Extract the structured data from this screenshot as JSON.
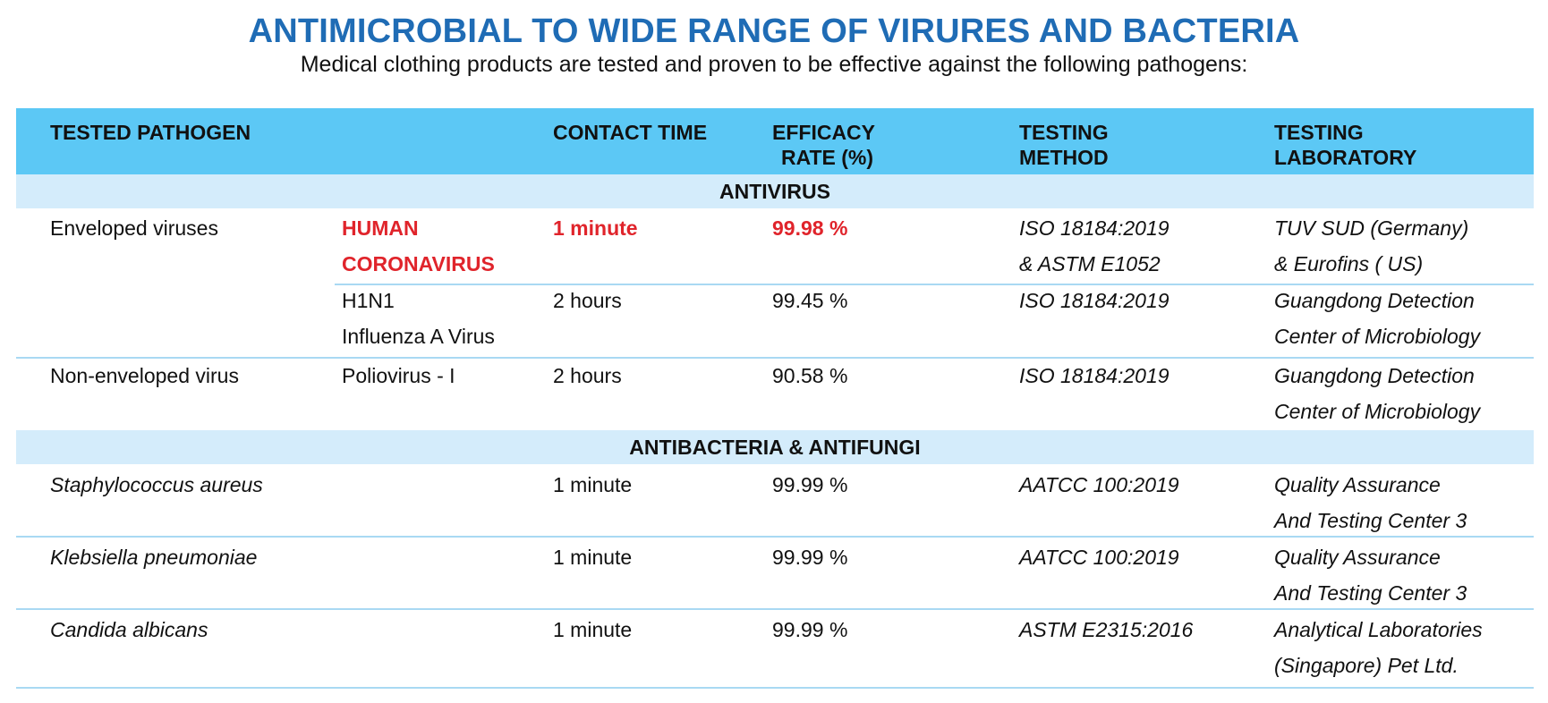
{
  "title": "ANTIMICROBIAL TO WIDE RANGE OF VIRURES AND BACTERIA",
  "subtitle": "Medical clothing products are tested and proven to be effective against the following pathogens:",
  "colors": {
    "title": "#1f6cb5",
    "header_bg": "#5cc8f5",
    "section_bg": "#d4ecfb",
    "highlight": "#e0242b",
    "rule": "#a9d9f3"
  },
  "header": {
    "pathogen": "TESTED PATHOGEN",
    "contact_time": "CONTACT TIME",
    "efficacy_line1": "EFFICACY",
    "efficacy_line2": "RATE (%)",
    "method_line1": "TESTING",
    "method_line2": "METHOD",
    "lab_line1": "TESTING",
    "lab_line2": "LABORATORY"
  },
  "sections": {
    "antivirus": "ANTIVIRUS",
    "antibacteria": "ANTIBACTERIA & ANTIFUNGI"
  },
  "rows": {
    "enveloped": {
      "category": "Enveloped viruses",
      "corona": {
        "name_line1": "HUMAN",
        "name_line2": "CORONAVIRUS",
        "time": "1 minute",
        "rate": "99.98 %",
        "method_line1": "ISO 18184:2019",
        "method_line2": "& ASTM E1052",
        "lab_line1": "TUV SUD (Germany)",
        "lab_line2": "& Eurofins ( US)"
      },
      "h1n1": {
        "name_line1": "H1N1",
        "name_line2": "Influenza A Virus",
        "time": "2 hours",
        "rate": "99.45 %",
        "method_line1": "ISO 18184:2019",
        "lab_line1": "Guangdong Detection",
        "lab_line2": "Center of Microbiology"
      }
    },
    "non_enveloped": {
      "category": "Non-enveloped virus",
      "name": "Poliovirus - I",
      "time": "2 hours",
      "rate": "90.58 %",
      "method_line1": "ISO 18184:2019",
      "lab_line1": "Guangdong Detection",
      "lab_line2": "Center of Microbiology"
    },
    "staph": {
      "name": "Staphylococcus aureus",
      "time": "1 minute",
      "rate": "99.99 %",
      "method_line1": "AATCC 100:2019",
      "lab_line1": "Quality Assurance",
      "lab_line2": "And Testing Center 3"
    },
    "kleb": {
      "name": "Klebsiella pneumoniae",
      "time": "1 minute",
      "rate": "99.99 %",
      "method_line1": "AATCC 100:2019",
      "lab_line1": "Quality Assurance",
      "lab_line2": "And Testing Center 3"
    },
    "candida": {
      "name": "Candida albicans",
      "time": "1 minute",
      "rate": "99.99 %",
      "method_line1": "ASTM E2315:2016",
      "lab_line1": "Analytical Laboratories",
      "lab_line2": "(Singapore) Pet Ltd."
    }
  }
}
